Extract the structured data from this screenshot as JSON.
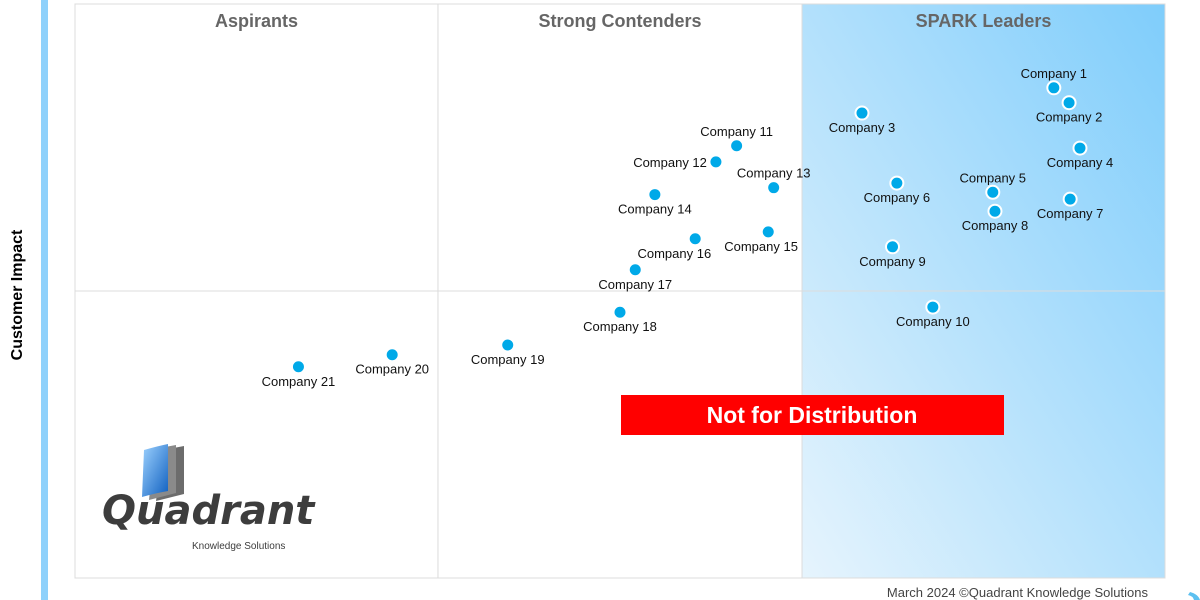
{
  "chart_data": {
    "type": "scatter",
    "title": "",
    "xlabel": "",
    "ylabel": "Customer Impact",
    "xlim": [
      0,
      100
    ],
    "ylim": [
      0,
      100
    ],
    "grid": false,
    "quadrant_dividers": {
      "x": [
        33.3,
        66.7
      ],
      "y": 50
    },
    "quadrants": [
      "Aspirants",
      "Strong Contenders",
      "SPARK Leaders"
    ],
    "point_color": "#00a9e8",
    "leaders_gradient": [
      "#e6f4fd",
      "#7fcdfb"
    ],
    "points": [
      {
        "label": "Company 1",
        "x": 89.8,
        "y": 85.4
      },
      {
        "label": "Company 2",
        "x": 91.2,
        "y": 82.8
      },
      {
        "label": "Company 3",
        "x": 72.2,
        "y": 81.0
      },
      {
        "label": "Company 4",
        "x": 92.2,
        "y": 74.9
      },
      {
        "label": "Company 5",
        "x": 84.2,
        "y": 67.2
      },
      {
        "label": "Company 6",
        "x": 75.4,
        "y": 68.8
      },
      {
        "label": "Company 7",
        "x": 91.3,
        "y": 66.0
      },
      {
        "label": "Company 8",
        "x": 84.4,
        "y": 63.9
      },
      {
        "label": "Company 9",
        "x": 75.0,
        "y": 57.7
      },
      {
        "label": "Company 10",
        "x": 78.7,
        "y": 47.2
      },
      {
        "label": "Company 11",
        "x": 60.7,
        "y": 75.3
      },
      {
        "label": "Company 12",
        "x": 58.8,
        "y": 72.5
      },
      {
        "label": "Company 13",
        "x": 64.1,
        "y": 68.0
      },
      {
        "label": "Company 14",
        "x": 53.2,
        "y": 66.8
      },
      {
        "label": "Company 15",
        "x": 63.6,
        "y": 60.3
      },
      {
        "label": "Company 16",
        "x": 56.9,
        "y": 59.1
      },
      {
        "label": "Company 17",
        "x": 51.4,
        "y": 53.7
      },
      {
        "label": "Company 18",
        "x": 50.0,
        "y": 46.3
      },
      {
        "label": "Company 19",
        "x": 39.7,
        "y": 40.6
      },
      {
        "label": "Company 20",
        "x": 29.1,
        "y": 38.9
      },
      {
        "label": "Company 21",
        "x": 20.5,
        "y": 36.8
      }
    ]
  },
  "watermark": "Not for Distribution",
  "watermark_color": "#ff0000",
  "footer": "March 2024 ©Quadrant Knowledge Solutions",
  "logo": {
    "name": "Quadrant",
    "tagline": "Knowledge Solutions"
  }
}
